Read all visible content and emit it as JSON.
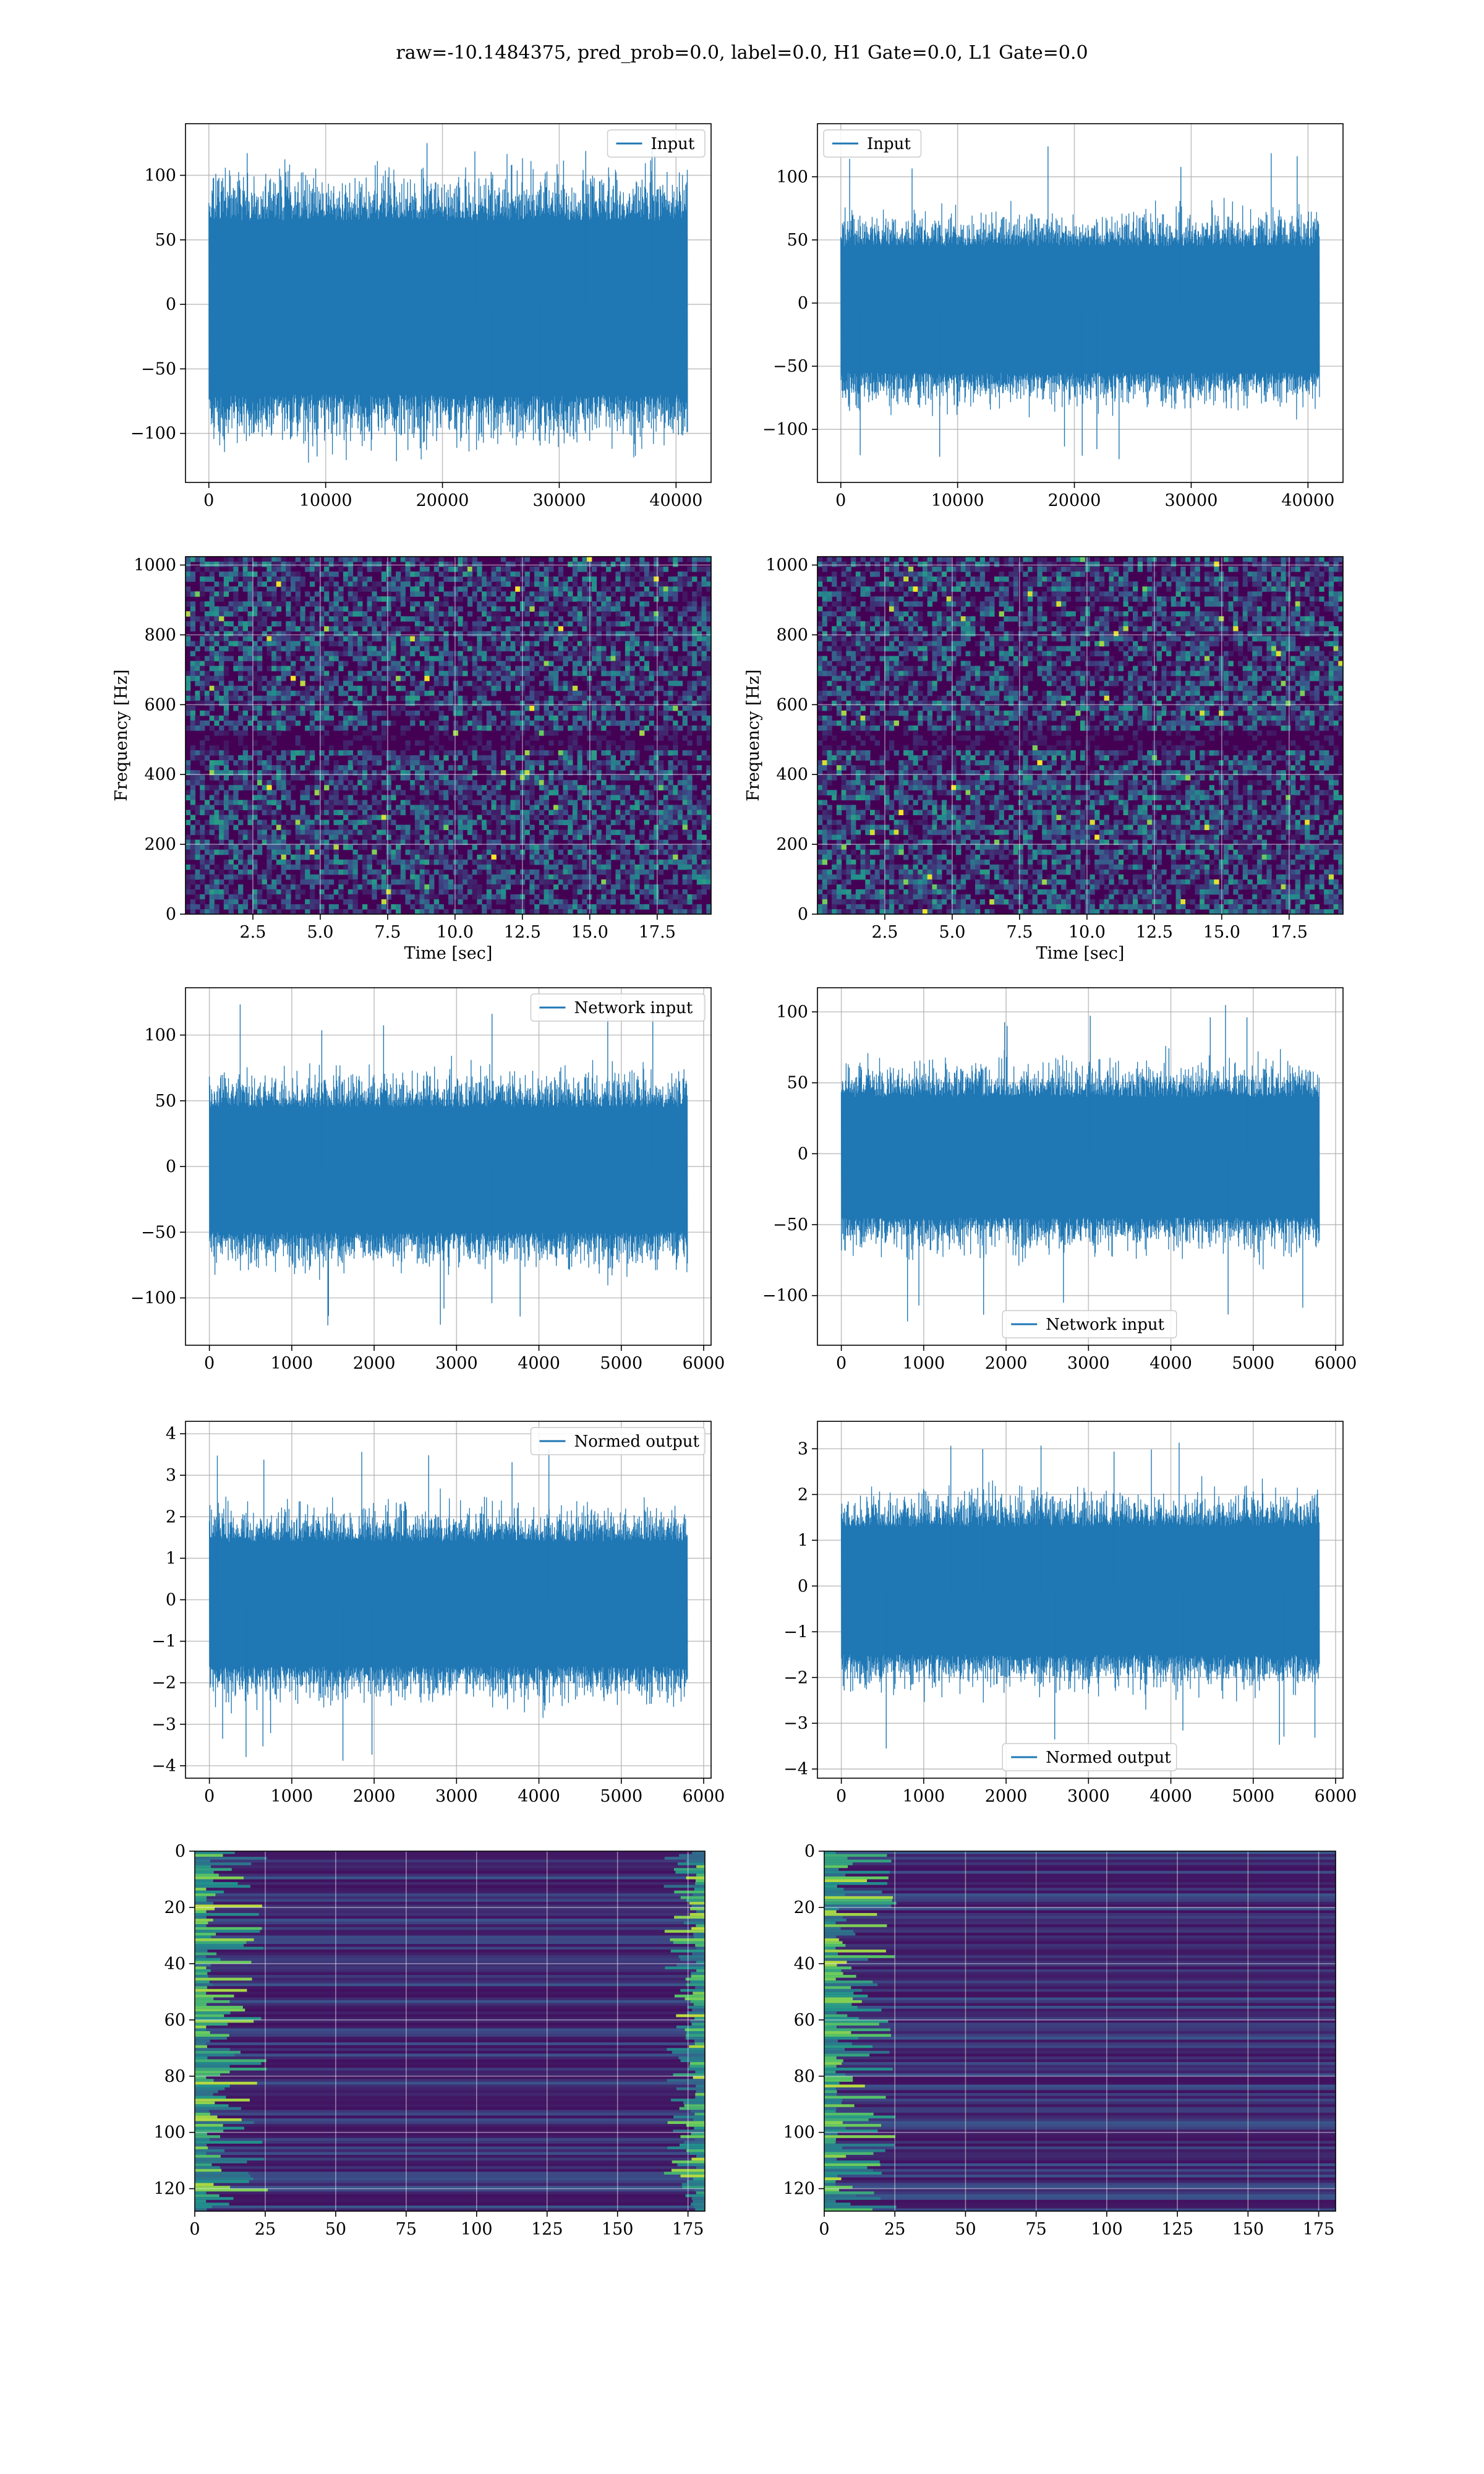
{
  "figure": {
    "title": "raw=-10.1484375, pred_prob=0.0, label=0.0, H1 Gate=0.0, L1 Gate=0.0"
  },
  "colors": {
    "line": "#1f77b4",
    "viridis_dark": "#440154",
    "viridis_mid": "#3b528b",
    "viridis_teal": "#21918c",
    "viridis_green": "#5ec962",
    "viridis_yellow": "#fde725",
    "grid": "#b0b0b0"
  },
  "chart_data": [
    {
      "id": "input-h1",
      "type": "line",
      "title": "",
      "xlabel": "",
      "ylabel": "",
      "xlim": [
        -2000,
        43000
      ],
      "ylim": [
        -138,
        140
      ],
      "xticks": [
        0,
        10000,
        20000,
        30000,
        40000
      ],
      "yticks": [
        -100,
        -50,
        0,
        50,
        100
      ],
      "legend": "top-right",
      "grid": true,
      "series": [
        {
          "name": "Input",
          "x_range": [
            0,
            40960
          ],
          "band": [
            -70,
            65
          ],
          "extremes": [
            -122,
            128
          ]
        }
      ]
    },
    {
      "id": "input-l1",
      "type": "line",
      "title": "",
      "xlabel": "",
      "ylabel": "",
      "xlim": [
        -2000,
        43000
      ],
      "ylim": [
        -142,
        142
      ],
      "xticks": [
        0,
        10000,
        20000,
        30000,
        40000
      ],
      "yticks": [
        -100,
        -50,
        0,
        50,
        100
      ],
      "legend": "top-left",
      "grid": true,
      "series": [
        {
          "name": "Input",
          "x_range": [
            0,
            40960
          ],
          "band": [
            -55,
            45
          ],
          "extremes": [
            -130,
            125
          ]
        }
      ]
    },
    {
      "id": "spectrogram-h1",
      "type": "heatmap",
      "title": "",
      "xlabel": "Time [sec]",
      "ylabel": "Frequency [Hz]",
      "xlim": [
        0,
        19.5
      ],
      "ylim": [
        0,
        1024
      ],
      "xticks": [
        2.5,
        5.0,
        7.5,
        10.0,
        12.5,
        15.0,
        17.5
      ],
      "yticks": [
        0,
        200,
        400,
        600,
        800,
        1000
      ],
      "grid": true,
      "colormap": "viridis",
      "dark_band_hz": [
        470,
        520
      ]
    },
    {
      "id": "spectrogram-l1",
      "type": "heatmap",
      "title": "",
      "xlabel": "Time [sec]",
      "ylabel": "Frequency [Hz]",
      "xlim": [
        0,
        19.5
      ],
      "ylim": [
        0,
        1024
      ],
      "xticks": [
        2.5,
        5.0,
        7.5,
        10.0,
        12.5,
        15.0,
        17.5
      ],
      "yticks": [
        0,
        200,
        400,
        600,
        800,
        1000
      ],
      "grid": true,
      "colormap": "viridis",
      "dark_band_hz": [
        470,
        520
      ]
    },
    {
      "id": "network-input-h1",
      "type": "line",
      "title": "",
      "xlabel": "",
      "ylabel": "",
      "xlim": [
        -290,
        6090
      ],
      "ylim": [
        -136,
        136
      ],
      "xticks": [
        0,
        1000,
        2000,
        3000,
        4000,
        5000,
        6000
      ],
      "yticks": [
        -100,
        -50,
        0,
        50,
        100
      ],
      "legend": "top-right",
      "grid": true,
      "series": [
        {
          "name": "Network input",
          "x_range": [
            0,
            5800
          ],
          "band": [
            -50,
            45
          ],
          "extremes": [
            -122,
            125
          ]
        }
      ]
    },
    {
      "id": "network-input-l1",
      "type": "line",
      "title": "",
      "xlabel": "",
      "ylabel": "",
      "xlim": [
        -290,
        6090
      ],
      "ylim": [
        -135,
        117
      ],
      "xticks": [
        0,
        1000,
        2000,
        3000,
        4000,
        5000,
        6000
      ],
      "yticks": [
        -100,
        -50,
        0,
        50,
        100
      ],
      "legend": "bottom-center",
      "grid": true,
      "series": [
        {
          "name": "Network input",
          "x_range": [
            0,
            5800
          ],
          "band": [
            -45,
            40
          ],
          "extremes": [
            -120,
            106
          ]
        }
      ]
    },
    {
      "id": "normed-output-h1",
      "type": "line",
      "title": "",
      "xlabel": "",
      "ylabel": "",
      "xlim": [
        -290,
        6090
      ],
      "ylim": [
        -4.3,
        4.3
      ],
      "xticks": [
        0,
        1000,
        2000,
        3000,
        4000,
        5000,
        6000
      ],
      "yticks": [
        -4,
        -3,
        -2,
        -1,
        0,
        1,
        2,
        3,
        4
      ],
      "legend": "top-right",
      "grid": true,
      "series": [
        {
          "name": "Normed output",
          "x_range": [
            0,
            5800
          ],
          "band": [
            -1.6,
            1.4
          ],
          "extremes": [
            -3.9,
            4.0
          ]
        }
      ]
    },
    {
      "id": "normed-output-l1",
      "type": "line",
      "title": "",
      "xlabel": "",
      "ylabel": "",
      "xlim": [
        -290,
        6090
      ],
      "ylim": [
        -4.2,
        3.6
      ],
      "xticks": [
        0,
        1000,
        2000,
        3000,
        4000,
        5000,
        6000
      ],
      "yticks": [
        -4,
        -3,
        -2,
        -1,
        0,
        1,
        2,
        3
      ],
      "legend": "bottom-center",
      "grid": true,
      "series": [
        {
          "name": "Normed output",
          "x_range": [
            0,
            5800
          ],
          "band": [
            -1.5,
            1.3
          ],
          "extremes": [
            -3.8,
            3.3
          ]
        }
      ]
    },
    {
      "id": "feature-map-h1",
      "type": "heatmap",
      "title": "",
      "xlabel": "",
      "ylabel": "",
      "xlim": [
        0,
        181
      ],
      "ylim": [
        128,
        0
      ],
      "xticks": [
        0,
        25,
        50,
        75,
        100,
        125,
        150,
        175
      ],
      "yticks": [
        0,
        20,
        40,
        60,
        80,
        100,
        120
      ],
      "grid": true,
      "colormap": "viridis",
      "bright_edges": [
        "left",
        "right"
      ]
    },
    {
      "id": "feature-map-l1",
      "type": "heatmap",
      "title": "",
      "xlabel": "",
      "ylabel": "",
      "xlim": [
        0,
        181
      ],
      "ylim": [
        128,
        0
      ],
      "xticks": [
        0,
        25,
        50,
        75,
        100,
        125,
        150,
        175
      ],
      "yticks": [
        0,
        20,
        40,
        60,
        80,
        100,
        120
      ],
      "grid": true,
      "colormap": "viridis",
      "bright_edges": [
        "left"
      ]
    }
  ]
}
